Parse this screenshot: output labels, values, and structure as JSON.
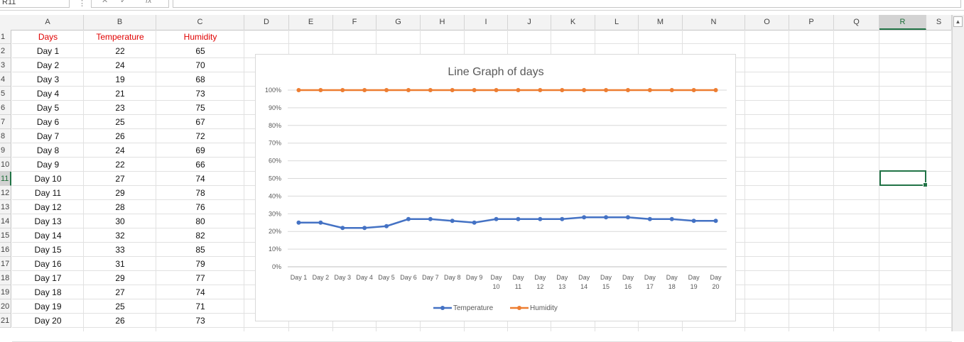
{
  "formula_bar": {
    "name_box": "R11",
    "fx": "fx",
    "formula": ""
  },
  "columns": [
    "A",
    "B",
    "C",
    "D",
    "E",
    "F",
    "G",
    "H",
    "I",
    "J",
    "K",
    "L",
    "M",
    "N",
    "O",
    "P",
    "Q",
    "R",
    "S"
  ],
  "selected_column": "R",
  "selected_row": 11,
  "rows": [
    1,
    2,
    3,
    4,
    5,
    6,
    7,
    8,
    9,
    10,
    11,
    12,
    13,
    14,
    15,
    16,
    17,
    18,
    19,
    20,
    21
  ],
  "table": {
    "headers": [
      "Days",
      "Temperature",
      "Humidity"
    ],
    "days": [
      "Day 1",
      "Day 2",
      "Day 3",
      "Day 4",
      "Day 5",
      "Day 6",
      "Day 7",
      "Day 8",
      "Day 9",
      "Day 10",
      "Day 11",
      "Day 12",
      "Day 13",
      "Day 14",
      "Day 15",
      "Day 16",
      "Day 17",
      "Day 18",
      "Day 19",
      "Day 20"
    ],
    "temperature": [
      22,
      24,
      19,
      21,
      23,
      25,
      26,
      24,
      22,
      27,
      29,
      28,
      30,
      32,
      33,
      31,
      29,
      27,
      25,
      26
    ],
    "humidity": [
      65,
      70,
      68,
      73,
      75,
      67,
      72,
      69,
      66,
      74,
      78,
      76,
      80,
      82,
      85,
      79,
      77,
      74,
      71,
      73
    ]
  },
  "chart_data": {
    "type": "line",
    "title": "Line Graph of days",
    "categories": [
      "Day 1",
      "Day 2",
      "Day 3",
      "Day 4",
      "Day 5",
      "Day 6",
      "Day 7",
      "Day 8",
      "Day 9",
      "Day 10",
      "Day 11",
      "Day 12",
      "Day 13",
      "Day 14",
      "Day 15",
      "Day 16",
      "Day 17",
      "Day 18",
      "Day 19",
      "Day 20"
    ],
    "series": [
      {
        "name": "Temperature",
        "color": "#4472c4",
        "values": [
          0.25,
          0.25,
          0.22,
          0.22,
          0.23,
          0.27,
          0.27,
          0.26,
          0.25,
          0.27,
          0.27,
          0.27,
          0.27,
          0.28,
          0.28,
          0.28,
          0.27,
          0.27,
          0.26,
          0.26
        ]
      },
      {
        "name": "Humidity",
        "color": "#ed7d31",
        "values": [
          1,
          1,
          1,
          1,
          1,
          1,
          1,
          1,
          1,
          1,
          1,
          1,
          1,
          1,
          1,
          1,
          1,
          1,
          1,
          1
        ]
      }
    ],
    "y_ticks": [
      "0%",
      "10%",
      "20%",
      "30%",
      "40%",
      "50%",
      "60%",
      "70%",
      "80%",
      "90%",
      "100%"
    ],
    "ylim": [
      0,
      1
    ],
    "grid": true,
    "legend": "bottom"
  }
}
